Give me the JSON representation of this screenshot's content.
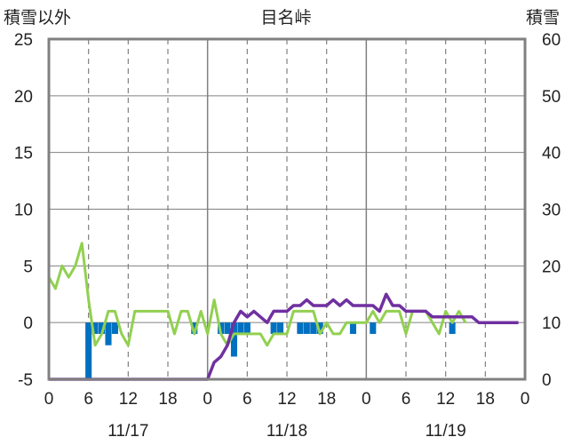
{
  "chart_data": {
    "type": "bar+line",
    "title": "目名峠",
    "left_axis_label": "積雪以外",
    "right_axis_label": "積雪",
    "left_ylim": [
      -5,
      25
    ],
    "left_ticks": [
      "25",
      "20",
      "15",
      "10",
      "5",
      "0",
      "-5"
    ],
    "right_ylim": [
      0,
      60
    ],
    "right_ticks": [
      "60",
      "50",
      "40",
      "30",
      "20",
      "10",
      "0"
    ],
    "x_range_hours": [
      0,
      72
    ],
    "x_tick_labels": [
      "0",
      "6",
      "12",
      "18",
      "0",
      "6",
      "12",
      "18",
      "0",
      "6",
      "12",
      "18",
      "0"
    ],
    "date_labels": [
      {
        "text": "11/17",
        "hour": 12
      },
      {
        "text": "11/18",
        "hour": 36
      },
      {
        "text": "11/19",
        "hour": 60
      }
    ],
    "grid": {
      "day_lines": "solid",
      "six_hour_lines": "dashed",
      "horizontal": "solid"
    },
    "colors": {
      "bars": "#0070c0",
      "temperature_line": "#92d050",
      "snow_depth_line": "#7030a0",
      "frame": "#808080",
      "grid": "#808080"
    },
    "series": [
      {
        "style": "bar",
        "axis": "left",
        "hour_values": [
          [
            6,
            -5
          ],
          [
            7,
            -1
          ],
          [
            8,
            -1
          ],
          [
            9,
            -2
          ],
          [
            10,
            -1
          ],
          [
            22,
            -1
          ],
          [
            26,
            -1
          ],
          [
            27,
            -1
          ],
          [
            28,
            -3
          ],
          [
            29,
            -1
          ],
          [
            30,
            -1
          ],
          [
            34,
            -1
          ],
          [
            35,
            -1
          ],
          [
            38,
            -1
          ],
          [
            39,
            -1
          ],
          [
            40,
            -1
          ],
          [
            41,
            -1
          ],
          [
            46,
            -1
          ],
          [
            49,
            -1
          ],
          [
            61,
            -1
          ]
        ]
      },
      {
        "style": "line",
        "axis": "left",
        "hour_values": [
          [
            0,
            4
          ],
          [
            1,
            3
          ],
          [
            2,
            5
          ],
          [
            3,
            4
          ],
          [
            4,
            5
          ],
          [
            5,
            7
          ],
          [
            6,
            2
          ],
          [
            7,
            -2
          ],
          [
            8,
            -1
          ],
          [
            9,
            1
          ],
          [
            10,
            1
          ],
          [
            11,
            -1
          ],
          [
            12,
            -2
          ],
          [
            13,
            1
          ],
          [
            14,
            1
          ],
          [
            15,
            1
          ],
          [
            16,
            1
          ],
          [
            17,
            1
          ],
          [
            18,
            1
          ],
          [
            19,
            -1
          ],
          [
            20,
            1
          ],
          [
            21,
            1
          ],
          [
            22,
            -1
          ],
          [
            23,
            1
          ],
          [
            24,
            -1
          ],
          [
            25,
            2
          ],
          [
            26,
            -1
          ],
          [
            27,
            -2
          ],
          [
            28,
            -1
          ],
          [
            29,
            -1
          ],
          [
            30,
            -1
          ],
          [
            31,
            -1
          ],
          [
            32,
            -1
          ],
          [
            33,
            -2
          ],
          [
            34,
            -1
          ],
          [
            35,
            -1
          ],
          [
            36,
            -1
          ],
          [
            37,
            1
          ],
          [
            38,
            1
          ],
          [
            39,
            1
          ],
          [
            40,
            1
          ],
          [
            41,
            -1
          ],
          [
            42,
            0
          ],
          [
            43,
            -1
          ],
          [
            44,
            -1
          ],
          [
            45,
            0
          ],
          [
            46,
            0
          ],
          [
            47,
            0
          ],
          [
            48,
            0
          ],
          [
            49,
            1
          ],
          [
            50,
            0
          ],
          [
            51,
            1
          ],
          [
            52,
            1
          ],
          [
            53,
            1
          ],
          [
            54,
            -1
          ],
          [
            55,
            1
          ],
          [
            56,
            1
          ],
          [
            57,
            1
          ],
          [
            58,
            0
          ],
          [
            59,
            -1
          ],
          [
            60,
            1
          ],
          [
            61,
            0
          ],
          [
            62,
            1
          ],
          [
            63,
            0
          ]
        ]
      },
      {
        "style": "line",
        "axis": "right",
        "hour_values": [
          [
            0,
            0
          ],
          [
            24,
            0
          ],
          [
            25,
            3
          ],
          [
            26,
            4
          ],
          [
            27,
            6
          ],
          [
            28,
            10
          ],
          [
            29,
            12
          ],
          [
            30,
            11
          ],
          [
            31,
            12
          ],
          [
            32,
            11
          ],
          [
            33,
            10
          ],
          [
            34,
            12
          ],
          [
            35,
            12
          ],
          [
            36,
            12
          ],
          [
            37,
            13
          ],
          [
            38,
            13
          ],
          [
            39,
            14
          ],
          [
            40,
            13
          ],
          [
            41,
            13
          ],
          [
            42,
            13
          ],
          [
            43,
            14
          ],
          [
            44,
            13
          ],
          [
            45,
            14
          ],
          [
            46,
            13
          ],
          [
            47,
            13
          ],
          [
            48,
            13
          ],
          [
            49,
            13
          ],
          [
            50,
            12
          ],
          [
            51,
            15
          ],
          [
            52,
            13
          ],
          [
            53,
            13
          ],
          [
            54,
            12
          ],
          [
            55,
            12
          ],
          [
            56,
            12
          ],
          [
            57,
            12
          ],
          [
            58,
            11
          ],
          [
            59,
            11
          ],
          [
            60,
            11
          ],
          [
            61,
            11
          ],
          [
            62,
            11
          ],
          [
            63,
            11
          ],
          [
            64,
            11
          ],
          [
            65,
            10
          ],
          [
            66,
            10
          ],
          [
            67,
            10
          ],
          [
            68,
            10
          ],
          [
            69,
            10
          ],
          [
            70,
            10
          ],
          [
            71,
            10
          ]
        ]
      }
    ]
  }
}
